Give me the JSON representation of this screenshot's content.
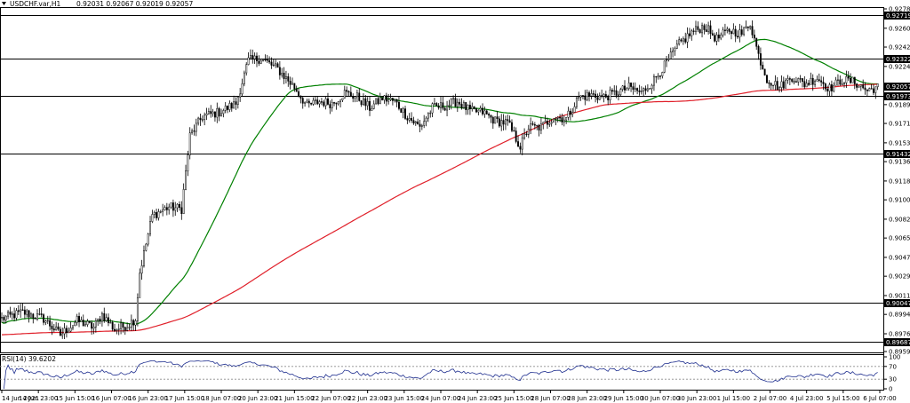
{
  "header": {
    "symbol": "USDCHF.var,H1",
    "ohlc": "0.92031 0.92067 0.92019 0.92057"
  },
  "colors": {
    "candle": "#000000",
    "ma_fast": "#008000",
    "ma_slow": "#e0202a",
    "level_line": "#000000",
    "rsi": "#1f2f8f",
    "rsi_levels": "#8c8c8c"
  },
  "chart_data": [
    {
      "type": "candlestick",
      "instrument": "USDCHF.var",
      "timeframe": "H1",
      "ylim": [
        0.89595,
        0.9278
      ],
      "y_ticks": [
        "0.92780",
        "0.92600",
        "0.92425",
        "0.92245",
        "0.92070",
        "0.91890",
        "0.91715",
        "0.91535",
        "0.91360",
        "0.91180",
        "0.91005",
        "0.90825",
        "0.90650",
        "0.90470",
        "0.90295",
        "0.90115",
        "0.89940",
        "0.89760",
        "0.89595"
      ],
      "x_tick_labels": [
        "14 Jun 2021",
        "14 Jun 23:00",
        "15 Jun 15:00",
        "16 Jun 07:00",
        "16 Jun 23:00",
        "17 Jun 15:00",
        "18 Jun 07:00",
        "20 Jun 23:00",
        "21 Jun 15:00",
        "22 Jun 07:00",
        "22 Jun 23:00",
        "23 Jun 15:00",
        "24 Jun 07:00",
        "24 Jun 23:00",
        "25 Jun 15:00",
        "28 Jun 07:00",
        "28 Jun 23:00",
        "29 Jun 15:00",
        "30 Jun 07:00",
        "30 Jun 23:00",
        "1 Jul 15:00",
        "2 Jul 07:00",
        "4 Jul 23:00",
        "5 Jul 15:00",
        "6 Jul 07:00"
      ],
      "price_path": [
        {
          "t": 0,
          "p": 0.899
        },
        {
          "t": 10,
          "p": 0.8996
        },
        {
          "t": 20,
          "p": 0.899
        },
        {
          "t": 28,
          "p": 0.8975
        },
        {
          "t": 36,
          "p": 0.8988
        },
        {
          "t": 44,
          "p": 0.8982
        },
        {
          "t": 48,
          "p": 0.8994
        },
        {
          "t": 54,
          "p": 0.898
        },
        {
          "t": 60,
          "p": 0.8984
        },
        {
          "t": 64,
          "p": 0.899
        },
        {
          "t": 66,
          "p": 0.9033
        },
        {
          "t": 72,
          "p": 0.9086
        },
        {
          "t": 80,
          "p": 0.9094
        },
        {
          "t": 86,
          "p": 0.9092
        },
        {
          "t": 90,
          "p": 0.916
        },
        {
          "t": 96,
          "p": 0.9178
        },
        {
          "t": 104,
          "p": 0.9182
        },
        {
          "t": 112,
          "p": 0.919
        },
        {
          "t": 118,
          "p": 0.923
        },
        {
          "t": 124,
          "p": 0.9232
        },
        {
          "t": 132,
          "p": 0.9222
        },
        {
          "t": 140,
          "p": 0.9205
        },
        {
          "t": 146,
          "p": 0.9188
        },
        {
          "t": 152,
          "p": 0.9192
        },
        {
          "t": 158,
          "p": 0.919
        },
        {
          "t": 164,
          "p": 0.92
        },
        {
          "t": 170,
          "p": 0.9196
        },
        {
          "t": 176,
          "p": 0.9186
        },
        {
          "t": 182,
          "p": 0.9195
        },
        {
          "t": 188,
          "p": 0.9192
        },
        {
          "t": 194,
          "p": 0.9178
        },
        {
          "t": 200,
          "p": 0.9168
        },
        {
          "t": 206,
          "p": 0.9186
        },
        {
          "t": 212,
          "p": 0.9188
        },
        {
          "t": 218,
          "p": 0.9192
        },
        {
          "t": 224,
          "p": 0.9183
        },
        {
          "t": 230,
          "p": 0.9182
        },
        {
          "t": 236,
          "p": 0.9174
        },
        {
          "t": 242,
          "p": 0.9172
        },
        {
          "t": 248,
          "p": 0.915
        },
        {
          "t": 252,
          "p": 0.9168
        },
        {
          "t": 258,
          "p": 0.9168
        },
        {
          "t": 264,
          "p": 0.9178
        },
        {
          "t": 270,
          "p": 0.9176
        },
        {
          "t": 276,
          "p": 0.9196
        },
        {
          "t": 282,
          "p": 0.9198
        },
        {
          "t": 288,
          "p": 0.9196
        },
        {
          "t": 294,
          "p": 0.92
        },
        {
          "t": 300,
          "p": 0.9205
        },
        {
          "t": 306,
          "p": 0.92
        },
        {
          "t": 312,
          "p": 0.9212
        },
        {
          "t": 318,
          "p": 0.9228
        },
        {
          "t": 324,
          "p": 0.9245
        },
        {
          "t": 330,
          "p": 0.9256
        },
        {
          "t": 336,
          "p": 0.9262
        },
        {
          "t": 342,
          "p": 0.925
        },
        {
          "t": 348,
          "p": 0.9258
        },
        {
          "t": 354,
          "p": 0.9255
        },
        {
          "t": 358,
          "p": 0.9265
        },
        {
          "t": 362,
          "p": 0.9235
        },
        {
          "t": 366,
          "p": 0.9213
        },
        {
          "t": 372,
          "p": 0.9205
        },
        {
          "t": 378,
          "p": 0.9215
        },
        {
          "t": 384,
          "p": 0.9208
        },
        {
          "t": 390,
          "p": 0.9214
        },
        {
          "t": 396,
          "p": 0.9204
        },
        {
          "t": 402,
          "p": 0.9212
        },
        {
          "t": 408,
          "p": 0.921
        },
        {
          "t": 414,
          "p": 0.9202
        },
        {
          "t": 418,
          "p": 0.9205
        }
      ],
      "levels": [
        {
          "name": "resistance-level-92719",
          "value": 0.92719,
          "label": "0.92719"
        },
        {
          "name": "resistance-level-92322",
          "value": 0.92322,
          "label": "0.92322"
        },
        {
          "name": "resistance-level-91973",
          "value": 0.91973,
          "label": "0.91973"
        },
        {
          "name": "support-level-91432",
          "value": 0.91432,
          "label": "0.91432"
        },
        {
          "name": "support-level-90047",
          "value": 0.90047,
          "label": "0.90047"
        },
        {
          "name": "support-level-89687",
          "value": 0.89687,
          "label": "0.89687"
        }
      ],
      "current_price": {
        "value": 0.92057,
        "label": "0.92057"
      },
      "moving_averages": [
        {
          "color": "#008000",
          "period_hint": 50
        },
        {
          "color": "#e0202a",
          "period_hint": 200
        }
      ]
    },
    {
      "type": "line",
      "title": "RSI(14) 39.6202",
      "ylim": [
        0,
        100
      ],
      "y_ticks": [
        "100",
        "70",
        "30",
        "0"
      ],
      "levels": [
        70,
        30
      ],
      "current_value": 39.6202
    }
  ]
}
